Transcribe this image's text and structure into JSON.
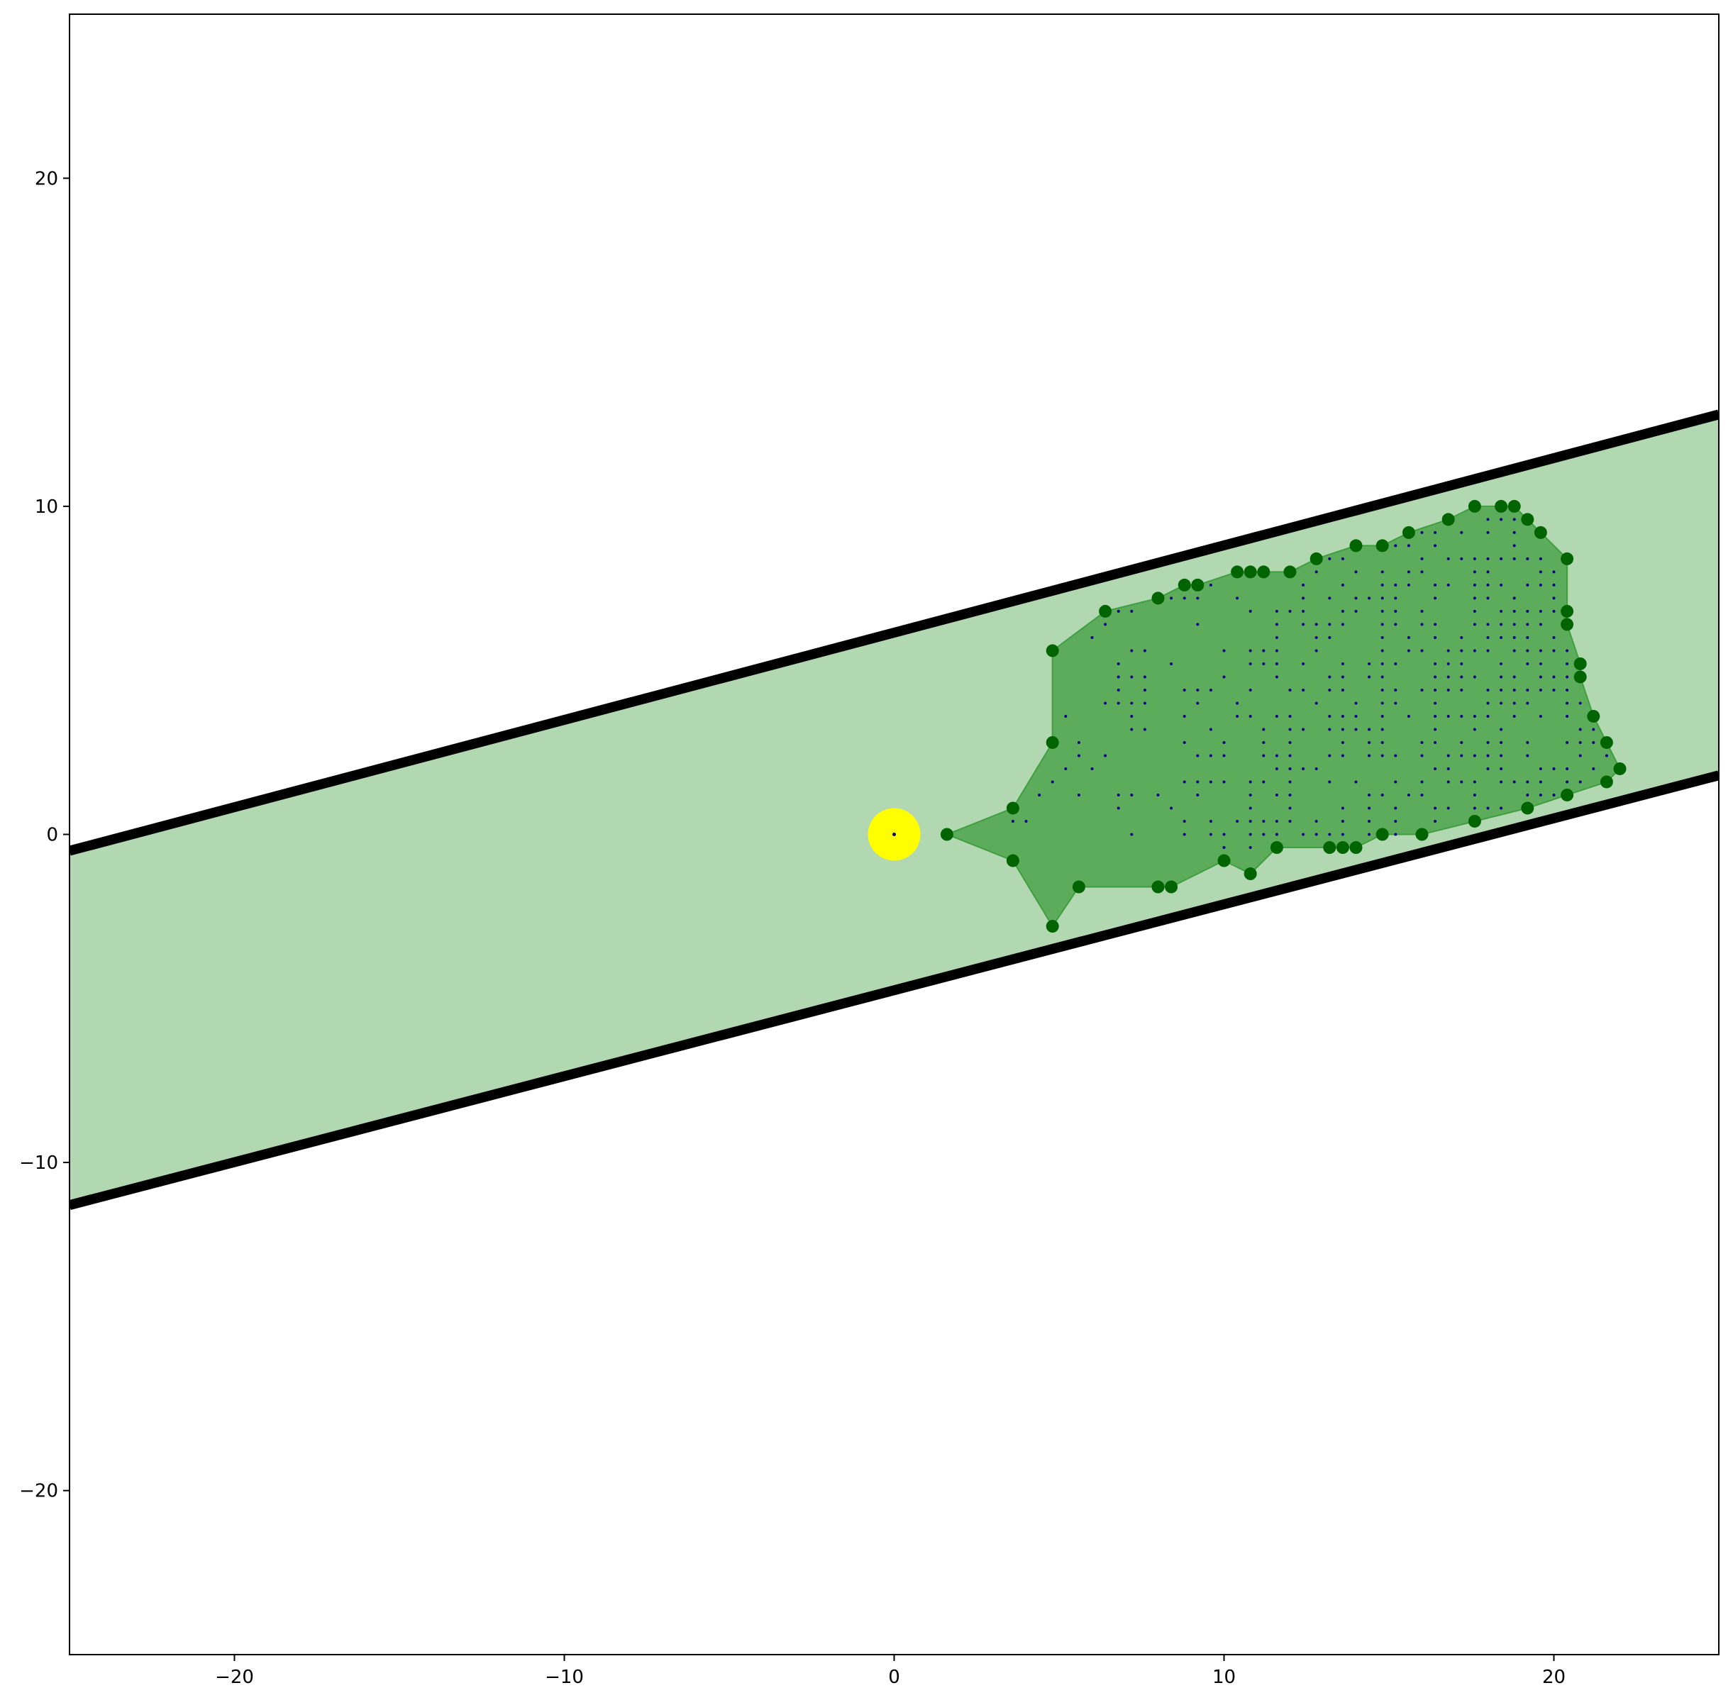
{
  "chart_data": {
    "type": "scatter",
    "title": "",
    "xlabel": "",
    "ylabel": "",
    "xlim": [
      -25,
      25
    ],
    "ylim": [
      -25,
      25
    ],
    "grid": false,
    "x_ticks": [
      {
        "value": -20,
        "label": "−20"
      },
      {
        "value": -10,
        "label": "−10"
      },
      {
        "value": 0,
        "label": "0"
      },
      {
        "value": 10,
        "label": "10"
      },
      {
        "value": 20,
        "label": "20"
      }
    ],
    "y_ticks": [
      {
        "value": 20,
        "label": "20"
      },
      {
        "value": 10,
        "label": "10"
      },
      {
        "value": 0,
        "label": "0"
      },
      {
        "value": -10,
        "label": "−10"
      },
      {
        "value": -20,
        "label": "−20"
      }
    ],
    "corridor": {
      "fill_color": "#b2d8b2",
      "line_color": "#000000",
      "upper_line": {
        "x": [
          -25,
          25
        ],
        "y": [
          -0.5,
          12.8
        ]
      },
      "lower_line": {
        "x": [
          -25,
          25
        ],
        "y": [
          -11.3,
          1.8
        ]
      }
    },
    "origin_marker": {
      "x": 0,
      "y": 0,
      "color": "#ffff00"
    },
    "hull": {
      "fill_color": "#3f9e3f",
      "point_color": "#006400",
      "points": [
        [
          1.6,
          0
        ],
        [
          3.6,
          0.8
        ],
        [
          4.8,
          2.8
        ],
        [
          4.8,
          5.6
        ],
        [
          6.4,
          6.8
        ],
        [
          8.0,
          7.2
        ],
        [
          8.8,
          7.6
        ],
        [
          9.2,
          7.6
        ],
        [
          10.4,
          8.0
        ],
        [
          10.8,
          8.0
        ],
        [
          11.2,
          8.0
        ],
        [
          12.0,
          8.0
        ],
        [
          12.8,
          8.4
        ],
        [
          14.0,
          8.8
        ],
        [
          14.8,
          8.8
        ],
        [
          15.6,
          9.2
        ],
        [
          16.8,
          9.6
        ],
        [
          17.6,
          10.0
        ],
        [
          18.4,
          10.0
        ],
        [
          18.8,
          10.0
        ],
        [
          19.2,
          9.6
        ],
        [
          19.6,
          9.2
        ],
        [
          20.4,
          8.4
        ],
        [
          20.4,
          6.8
        ],
        [
          20.4,
          6.4
        ],
        [
          20.8,
          5.2
        ],
        [
          20.8,
          4.8
        ],
        [
          21.2,
          3.6
        ],
        [
          21.6,
          2.8
        ],
        [
          22.0,
          2.0
        ],
        [
          21.6,
          1.6
        ],
        [
          20.4,
          1.2
        ],
        [
          19.2,
          0.8
        ],
        [
          17.6,
          0.4
        ],
        [
          16.0,
          0
        ],
        [
          14.8,
          0
        ],
        [
          14.0,
          -0.4
        ],
        [
          13.6,
          -0.4
        ],
        [
          13.2,
          -0.4
        ],
        [
          11.6,
          -0.4
        ],
        [
          10.8,
          -1.2
        ],
        [
          10.0,
          -0.8
        ],
        [
          8.4,
          -1.6
        ],
        [
          8.0,
          -1.6
        ],
        [
          5.6,
          -1.6
        ],
        [
          4.8,
          -2.8
        ],
        [
          3.6,
          -0.8
        ]
      ]
    },
    "interior_points": {
      "color": "#00008b",
      "x_range": [
        3.6,
        21.6
      ],
      "y_range": [
        -0.4,
        9.6
      ]
    }
  }
}
